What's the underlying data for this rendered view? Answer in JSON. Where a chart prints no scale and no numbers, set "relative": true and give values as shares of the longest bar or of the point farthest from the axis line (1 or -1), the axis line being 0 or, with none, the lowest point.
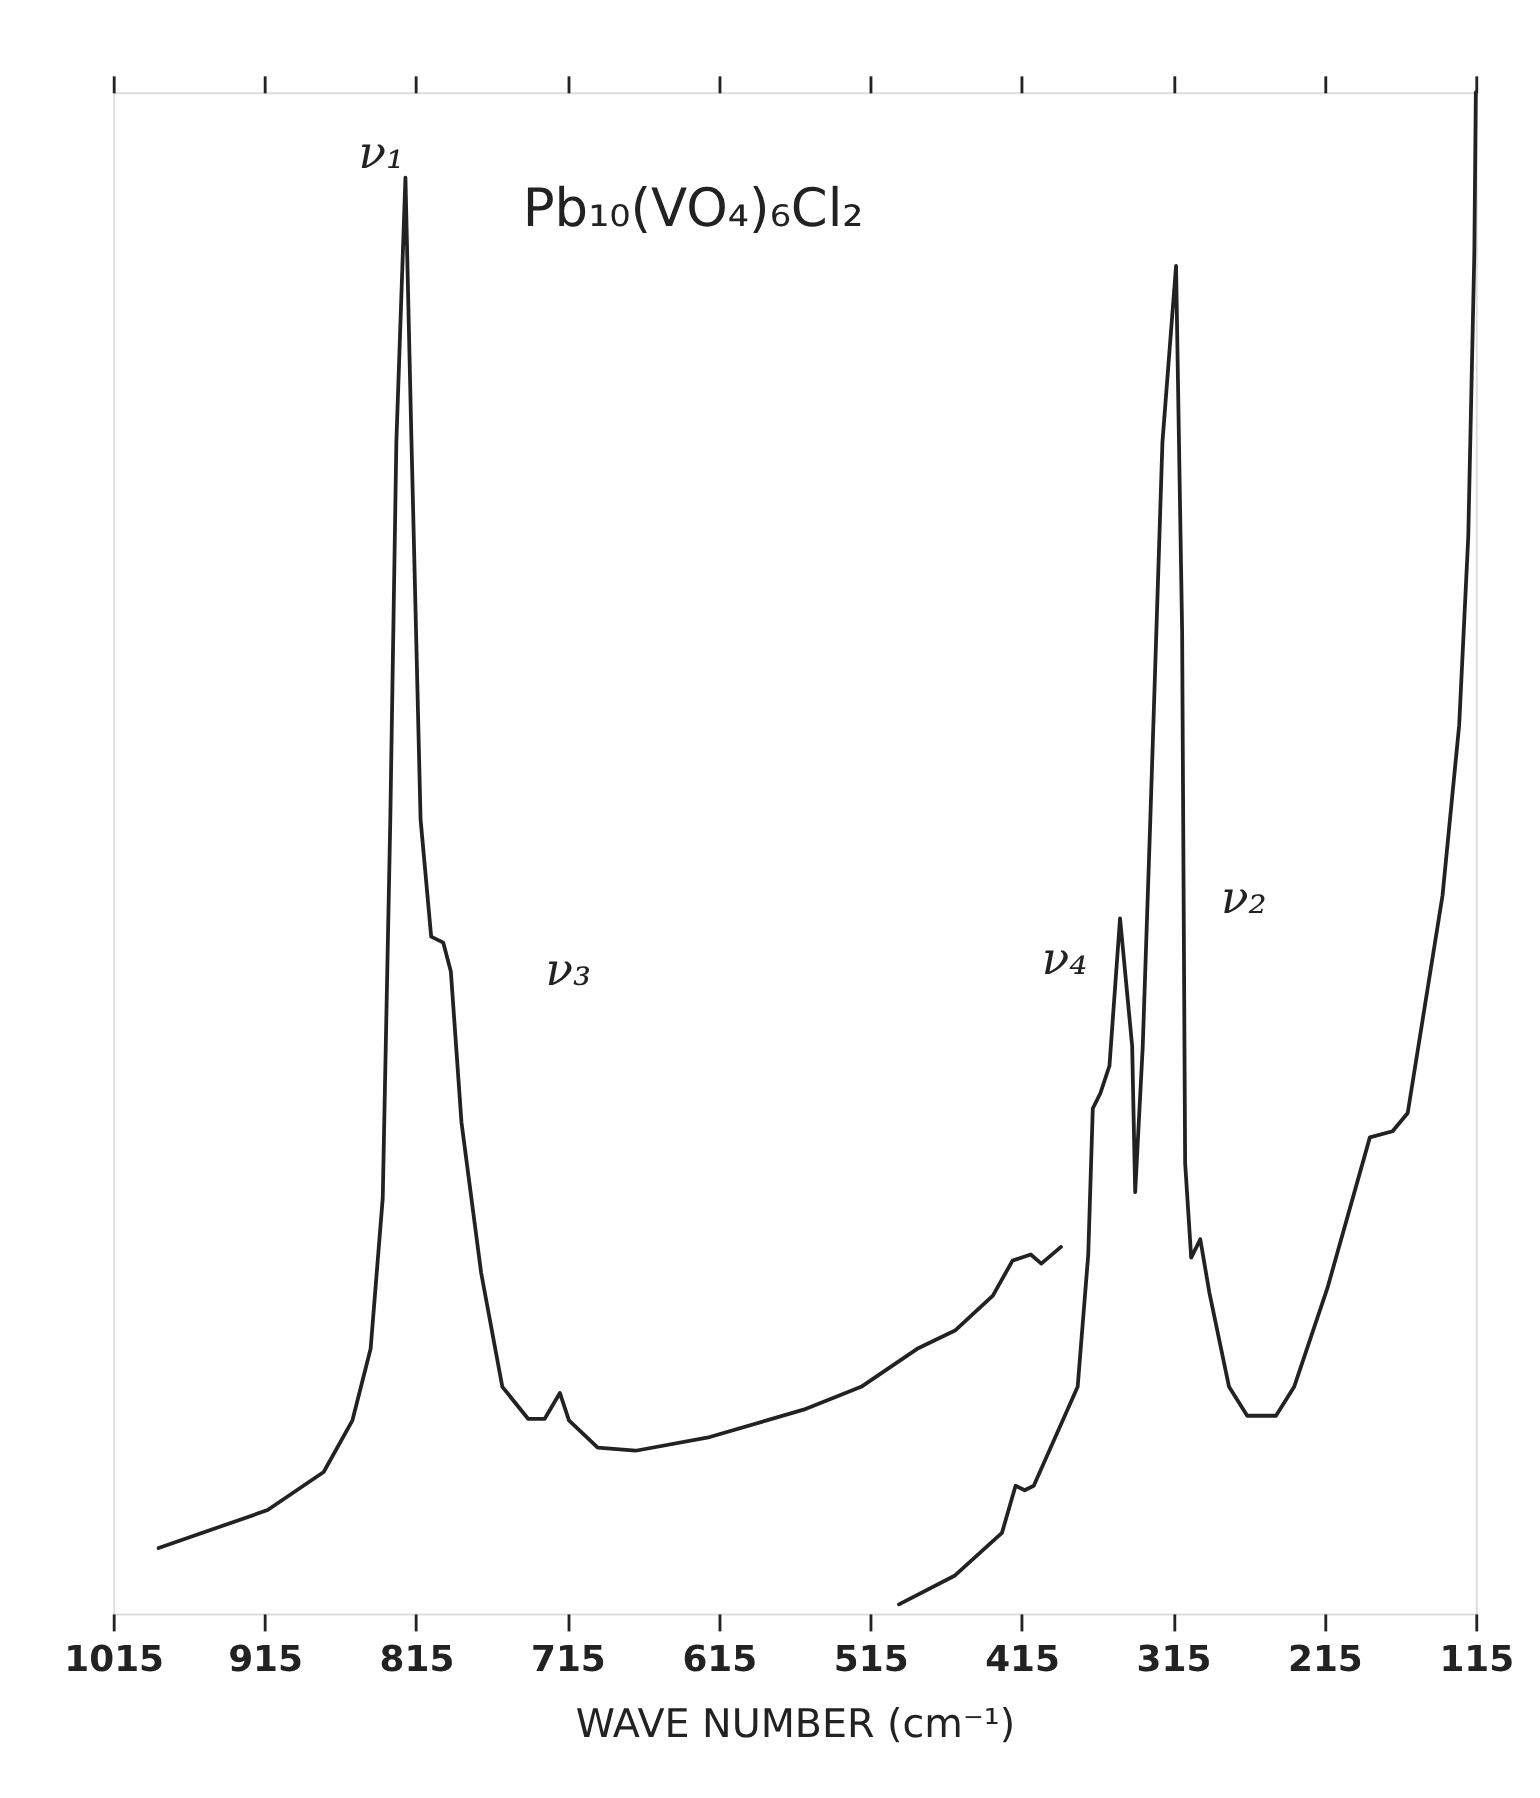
{
  "chart_data": {
    "type": "line",
    "relative": true,
    "xlabel": "WAVE NUMBER (cm⁻¹)",
    "xlim": [
      1015,
      115
    ],
    "xticks": [
      1015,
      915,
      815,
      715,
      615,
      515,
      415,
      315,
      215,
      115
    ],
    "grid": false,
    "marker": "none",
    "line_style": "solid",
    "annotations": [
      "Pb₁₀(VO₄)₆Cl₂",
      "ν₁",
      "ν₃",
      "ν₄",
      "ν₂"
    ],
    "series": [
      {
        "color": "#222222",
        "x": [
          985,
          913,
          876,
          857,
          845,
          837,
          832,
          828,
          822,
          818,
          812,
          805,
          797,
          792,
          785,
          772,
          758,
          741,
          730,
          720,
          714,
          695,
          670,
          621,
          559,
          521,
          484,
          459,
          434,
          421,
          409,
          402,
          389
        ],
        "values": [
          0.043,
          0.068,
          0.093,
          0.127,
          0.174,
          0.273,
          0.522,
          0.77,
          0.944,
          0.77,
          0.522,
          0.445,
          0.441,
          0.422,
          0.323,
          0.224,
          0.149,
          0.128,
          0.128,
          0.145,
          0.127,
          0.109,
          0.107,
          0.116,
          0.134,
          0.149,
          0.174,
          0.186,
          0.209,
          0.232,
          0.236,
          0.23,
          0.241
        ]
      },
      {
        "color": "#222222",
        "x": [
          496,
          459,
          428,
          419,
          413,
          407,
          378,
          371,
          368,
          363,
          357,
          350,
          342,
          340,
          335,
          330,
          322,
          313,
          309,
          307,
          303,
          297,
          291,
          278,
          266,
          247,
          235,
          213,
          185,
          170,
          160,
          137,
          126,
          120,
          116,
          115
        ],
        "values": [
          0.006,
          0.025,
          0.053,
          0.084,
          0.081,
          0.084,
          0.149,
          0.236,
          0.332,
          0.342,
          0.36,
          0.457,
          0.373,
          0.277,
          0.373,
          0.522,
          0.77,
          0.886,
          0.646,
          0.296,
          0.234,
          0.246,
          0.211,
          0.149,
          0.13,
          0.13,
          0.149,
          0.214,
          0.313,
          0.317,
          0.329,
          0.472,
          0.584,
          0.708,
          0.894,
          1
        ]
      }
    ]
  }
}
